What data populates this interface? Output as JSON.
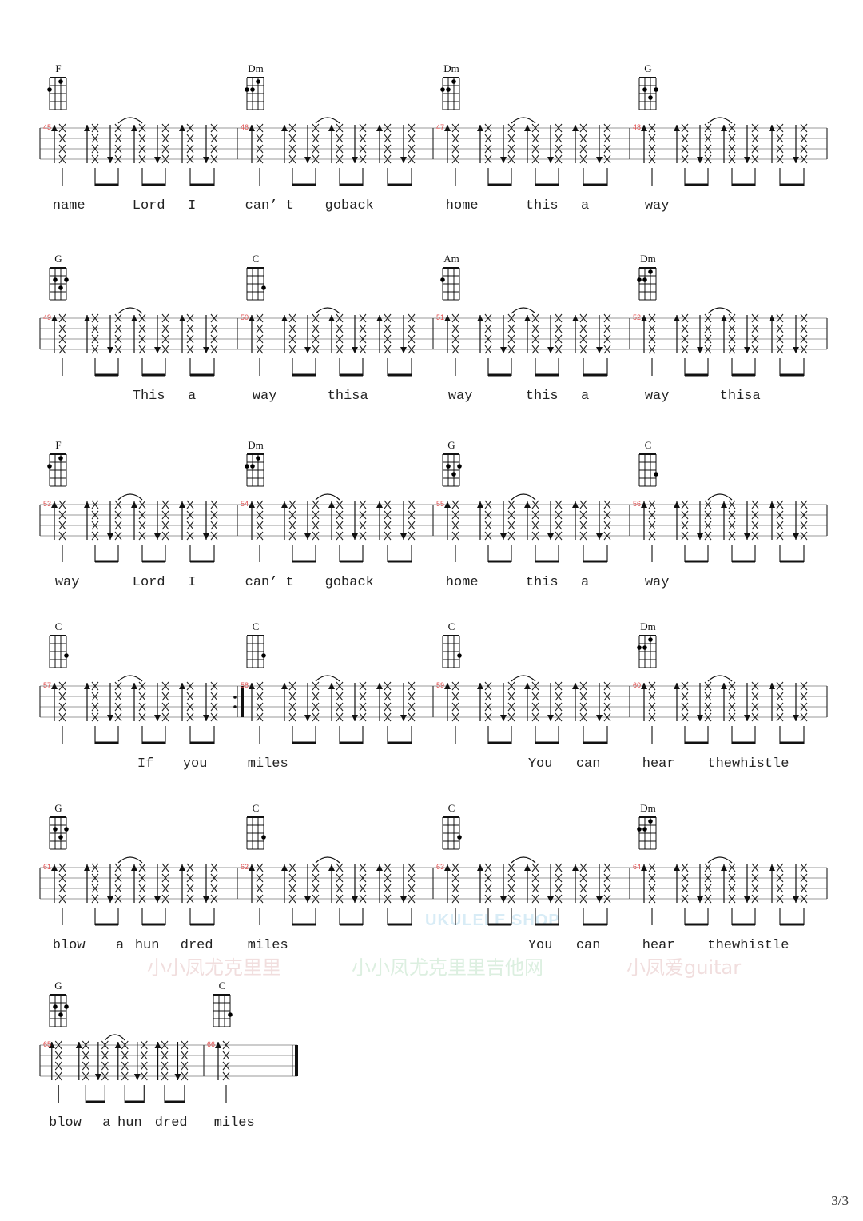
{
  "chord_shapes": {
    "F": [
      2,
      0,
      1,
      0
    ],
    "Dm": [
      2,
      2,
      1,
      0
    ],
    "G": [
      0,
      2,
      3,
      2
    ],
    "C": [
      0,
      0,
      0,
      3
    ],
    "Am": [
      2,
      0,
      0,
      0
    ]
  },
  "rows": [
    {
      "measures": [
        {
          "num": "45",
          "chord": "F",
          "lyrics": [
            {
              "t": "name",
              "n": 0
            },
            {
              "t": "Lord",
              "n": 3
            },
            {
              "t": "I",
              "n": 5
            }
          ]
        },
        {
          "num": "46",
          "chord": "Dm",
          "lyrics": [
            {
              "t": "can’ t",
              "n": 0
            },
            {
              "t": "goback",
              "n": 3
            }
          ]
        },
        {
          "num": "47",
          "chord": "Dm",
          "lyrics": [
            {
              "t": "home",
              "n": 0
            },
            {
              "t": "this",
              "n": 3
            },
            {
              "t": "a",
              "n": 5
            }
          ]
        },
        {
          "num": "48",
          "chord": "G",
          "lyrics": [
            {
              "t": "way",
              "n": 0
            }
          ]
        }
      ]
    },
    {
      "measures": [
        {
          "num": "49",
          "chord": "G",
          "lyrics": [
            {
              "t": "This",
              "n": 3
            },
            {
              "t": "a",
              "n": 5
            }
          ]
        },
        {
          "num": "50",
          "chord": "C",
          "lyrics": [
            {
              "t": "way",
              "n": 0
            },
            {
              "t": "thisa",
              "n": 3
            }
          ]
        },
        {
          "num": "51",
          "chord": "Am",
          "lyrics": [
            {
              "t": "way",
              "n": 0
            },
            {
              "t": "this",
              "n": 3
            },
            {
              "t": "a",
              "n": 5
            }
          ]
        },
        {
          "num": "52",
          "chord": "Dm",
          "lyrics": [
            {
              "t": "way",
              "n": 0
            },
            {
              "t": "thisa",
              "n": 3
            }
          ]
        }
      ]
    },
    {
      "measures": [
        {
          "num": "53",
          "chord": "F",
          "lyrics": [
            {
              "t": "way",
              "n": 0
            },
            {
              "t": "Lord",
              "n": 3
            },
            {
              "t": "I",
              "n": 5
            }
          ]
        },
        {
          "num": "54",
          "chord": "Dm",
          "lyrics": [
            {
              "t": "can’ t",
              "n": 0
            },
            {
              "t": "goback",
              "n": 3
            }
          ]
        },
        {
          "num": "55",
          "chord": "G",
          "lyrics": [
            {
              "t": "home",
              "n": 0
            },
            {
              "t": "this",
              "n": 3
            },
            {
              "t": "a",
              "n": 5
            }
          ]
        },
        {
          "num": "56",
          "chord": "C",
          "lyrics": [
            {
              "t": "way",
              "n": 0
            }
          ]
        }
      ]
    },
    {
      "measures": [
        {
          "num": "57",
          "chord": "C",
          "lyrics": [
            {
              "t": "If",
              "n": 3
            },
            {
              "t": "you",
              "n": 5
            }
          ]
        },
        {
          "num": "58",
          "chord": "C",
          "repeat_start": true,
          "lyrics": [
            {
              "t": "miles",
              "n": 0
            }
          ]
        },
        {
          "num": "59",
          "chord": "C",
          "lyrics": [
            {
              "t": "You",
              "n": 3
            },
            {
              "t": "can",
              "n": 5
            }
          ]
        },
        {
          "num": "60",
          "chord": "Dm",
          "lyrics": [
            {
              "t": "hear",
              "n": 0
            },
            {
              "t": "thewhistle",
              "n": 3
            }
          ]
        }
      ]
    },
    {
      "measures": [
        {
          "num": "61",
          "chord": "G",
          "lyrics": [
            {
              "t": "blow",
              "n": 0
            },
            {
              "t": "a",
              "n": 2
            },
            {
              "t": "hun",
              "n": 3
            },
            {
              "t": "dred",
              "n": 5
            }
          ]
        },
        {
          "num": "62",
          "chord": "C",
          "lyrics": [
            {
              "t": "miles",
              "n": 0
            }
          ]
        },
        {
          "num": "63",
          "chord": "C",
          "lyrics": [
            {
              "t": "You",
              "n": 3
            },
            {
              "t": "can",
              "n": 5
            }
          ]
        },
        {
          "num": "64",
          "chord": "Dm",
          "lyrics": [
            {
              "t": "hear",
              "n": 0
            },
            {
              "t": "thewhistle",
              "n": 3
            }
          ]
        }
      ]
    },
    {
      "measures": [
        {
          "num": "65",
          "chord": "G",
          "lyrics": [
            {
              "t": "blow",
              "n": 0
            },
            {
              "t": "a",
              "n": 2
            },
            {
              "t": "hun",
              "n": 3
            },
            {
              "t": "dred",
              "n": 5
            }
          ]
        },
        {
          "num": "66",
          "chord": "C",
          "single_note": true,
          "final": true,
          "lyrics": [
            {
              "t": "miles",
              "n": 0
            }
          ]
        }
      ]
    }
  ],
  "watermark": {
    "taobao": "小小凤尤克里里",
    "wechat": "小小凤尤克里里吉他网",
    "weibo": "小凤爱guitar",
    "shop": "UKULELE SHOP"
  },
  "page_number": "3/3"
}
